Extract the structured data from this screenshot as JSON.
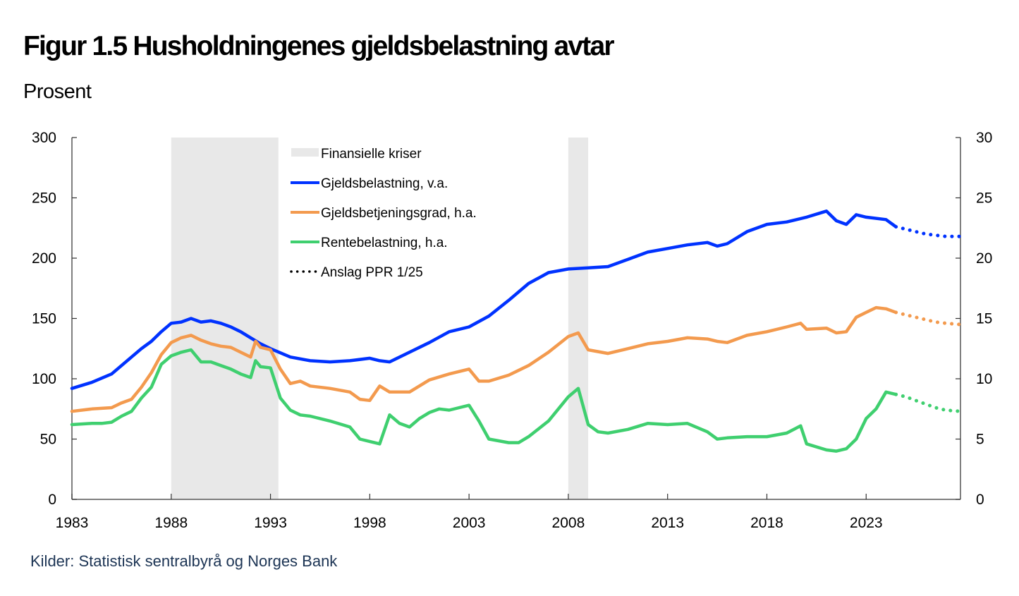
{
  "title": "Figur 1.5 Husholdningenes gjeldsbelastning avtar",
  "subtitle": "Prosent",
  "source": "Kilder: Statistisk sentralbyrå og Norges Bank",
  "chart_data": {
    "type": "line",
    "title": "Figur 1.5 Husholdningenes gjeldsbelastning avtar",
    "ylabel": "Prosent",
    "xlim": [
      1983,
      2027.75
    ],
    "ylim_left": [
      0,
      300
    ],
    "ylim_right": [
      0,
      30
    ],
    "x_ticks": [
      "1983",
      "1988",
      "1993",
      "1998",
      "2003",
      "2008",
      "2013",
      "2018",
      "2023"
    ],
    "y_ticks_left": [
      "0",
      "50",
      "100",
      "150",
      "200",
      "250",
      "300"
    ],
    "y_ticks_right": [
      "0",
      "5",
      "10",
      "15",
      "20",
      "25",
      "30"
    ],
    "grid": false,
    "legend_position": "top-center",
    "shaded_periods": [
      {
        "name": "Finansielle kriser",
        "start": 1988.0,
        "end": 1993.4
      },
      {
        "name": "Finansielle kriser",
        "start": 2008.0,
        "end": 2009.0
      }
    ],
    "legend": [
      {
        "label": "Finansielle kriser",
        "type": "area",
        "color": "#e8e8e8"
      },
      {
        "label": "Gjeldsbelastning, v.a.",
        "type": "line",
        "color": "#0032ff"
      },
      {
        "label": "Gjeldsbetjeningsgrad, h.a.",
        "type": "line",
        "color": "#f39a4e"
      },
      {
        "label": "Rentebelastning, h.a.",
        "type": "line",
        "color": "#3fcf6f"
      },
      {
        "label": "Anslag PPR 1/25",
        "type": "dotted",
        "color": "#000000"
      }
    ],
    "series": [
      {
        "name": "Gjeldsbelastning, v.a.",
        "axis": "left",
        "color": "#0032ff",
        "x": [
          1983,
          1984,
          1985,
          1986,
          1986.5,
          1987,
          1987.5,
          1988,
          1988.5,
          1989,
          1989.5,
          1990,
          1990.5,
          1991,
          1991.5,
          1992,
          1992.5,
          1993,
          1994,
          1995,
          1996,
          1997,
          1998,
          1998.5,
          1999,
          2000,
          2001,
          2002,
          2003,
          2004,
          2005,
          2006,
          2007,
          2008,
          2009,
          2010,
          2011,
          2012,
          2013,
          2014,
          2015,
          2015.5,
          2016,
          2017,
          2018,
          2019,
          2020,
          2021,
          2021.5,
          2022,
          2022.5,
          2023,
          2024,
          2024.5
        ],
        "y": [
          92,
          97,
          104,
          118,
          125,
          131,
          139,
          146,
          147,
          150,
          147,
          148,
          146,
          143,
          139,
          134,
          129,
          125,
          118,
          115,
          114,
          115,
          117,
          115,
          114,
          122,
          130,
          139,
          143,
          152,
          165,
          179,
          188,
          191,
          192,
          193,
          199,
          205,
          208,
          211,
          213,
          210,
          212,
          222,
          228,
          230,
          234,
          239,
          231,
          228,
          236,
          234,
          232,
          226
        ]
      },
      {
        "name": "Gjeldsbelastning, v.a. (anslag)",
        "axis": "left",
        "color": "#0032ff",
        "dotted": true,
        "x": [
          2024.5,
          2025,
          2025.5,
          2026,
          2026.5,
          2027,
          2027.75
        ],
        "y": [
          226,
          224,
          222,
          220,
          219,
          218,
          218
        ]
      },
      {
        "name": "Gjeldsbetjeningsgrad, h.a.",
        "axis": "right",
        "color": "#f39a4e",
        "x": [
          1983,
          1984,
          1985,
          1985.5,
          1986,
          1986.5,
          1987,
          1987.5,
          1988,
          1988.5,
          1989,
          1989.5,
          1990,
          1990.5,
          1991,
          1991.5,
          1992,
          1992.25,
          1992.5,
          1993,
          1993.5,
          1994,
          1994.5,
          1995,
          1996,
          1997,
          1997.5,
          1998,
          1998.5,
          1999,
          2000,
          2001,
          2002,
          2003,
          2003.5,
          2004,
          2005,
          2006,
          2007,
          2008,
          2008.5,
          2009,
          2010,
          2011,
          2012,
          2013,
          2014,
          2015,
          2015.5,
          2016,
          2017,
          2018,
          2019,
          2019.7,
          2020,
          2021,
          2021.5,
          2022,
          2022.5,
          2023,
          2023.5,
          2024,
          2024.5
        ],
        "y": [
          7.3,
          7.5,
          7.6,
          8.0,
          8.3,
          9.3,
          10.5,
          12.0,
          13.0,
          13.4,
          13.6,
          13.2,
          12.9,
          12.7,
          12.6,
          12.2,
          11.8,
          13.1,
          12.6,
          12.4,
          10.8,
          9.6,
          9.8,
          9.4,
          9.2,
          8.9,
          8.3,
          8.2,
          9.4,
          8.9,
          8.9,
          9.9,
          10.4,
          10.8,
          9.8,
          9.8,
          10.3,
          11.1,
          12.2,
          13.5,
          13.8,
          12.4,
          12.1,
          12.5,
          12.9,
          13.1,
          13.4,
          13.3,
          13.1,
          13.0,
          13.6,
          13.9,
          14.3,
          14.6,
          14.1,
          14.2,
          13.8,
          13.9,
          15.1,
          15.5,
          15.9,
          15.8,
          15.5
        ]
      },
      {
        "name": "Gjeldsbetjeningsgrad, h.a. (anslag)",
        "axis": "right",
        "color": "#f39a4e",
        "dotted": true,
        "x": [
          2024.5,
          2025,
          2025.5,
          2026,
          2026.5,
          2027,
          2027.75
        ],
        "y": [
          15.5,
          15.3,
          15.1,
          14.9,
          14.7,
          14.6,
          14.5
        ]
      },
      {
        "name": "Rentebelastning, h.a.",
        "axis": "right",
        "color": "#3fcf6f",
        "x": [
          1983,
          1984,
          1984.5,
          1985,
          1985.5,
          1986,
          1986.5,
          1987,
          1987.5,
          1988,
          1988.5,
          1989,
          1989.5,
          1990,
          1990.5,
          1991,
          1991.5,
          1992,
          1992.25,
          1992.5,
          1993,
          1993.5,
          1994,
          1994.5,
          1995,
          1996,
          1997,
          1997.5,
          1998,
          1998.5,
          1999,
          1999.5,
          2000,
          2000.5,
          2001,
          2001.5,
          2002,
          2002.5,
          2003,
          2003.5,
          2004,
          2005,
          2005.5,
          2006,
          2007,
          2008,
          2008.5,
          2009,
          2009.5,
          2010,
          2011,
          2012,
          2013,
          2014,
          2015,
          2015.5,
          2016,
          2017,
          2018,
          2019,
          2019.7,
          2020,
          2021,
          2021.5,
          2022,
          2022.5,
          2023,
          2023.5,
          2024,
          2024.5
        ],
        "y": [
          6.2,
          6.3,
          6.3,
          6.4,
          6.9,
          7.3,
          8.4,
          9.3,
          11.2,
          11.9,
          12.2,
          12.4,
          11.4,
          11.4,
          11.1,
          10.8,
          10.4,
          10.1,
          11.5,
          11.0,
          10.9,
          8.4,
          7.4,
          7.0,
          6.9,
          6.5,
          6.0,
          5.0,
          4.8,
          4.6,
          7.0,
          6.3,
          6.0,
          6.7,
          7.2,
          7.5,
          7.4,
          7.6,
          7.8,
          6.5,
          5.0,
          4.7,
          4.7,
          5.2,
          6.5,
          8.5,
          9.2,
          6.2,
          5.6,
          5.5,
          5.8,
          6.3,
          6.2,
          6.3,
          5.6,
          5.0,
          5.1,
          5.2,
          5.2,
          5.5,
          6.1,
          4.6,
          4.1,
          4.0,
          4.2,
          5.0,
          6.7,
          7.5,
          8.9,
          8.7
        ]
      },
      {
        "name": "Rentebelastning, h.a. (anslag)",
        "axis": "right",
        "color": "#3fcf6f",
        "dotted": true,
        "x": [
          2024.5,
          2025,
          2025.5,
          2026,
          2026.5,
          2027,
          2027.75
        ],
        "y": [
          8.7,
          8.5,
          8.2,
          7.9,
          7.6,
          7.4,
          7.3
        ]
      }
    ]
  }
}
